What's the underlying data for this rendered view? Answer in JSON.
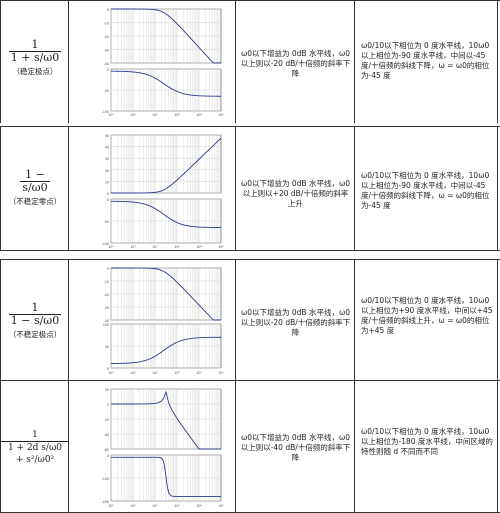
{
  "rows": [
    {
      "tf": {
        "num": "1",
        "den": "1 + s/ω0",
        "note": "（稳定极点）"
      },
      "mag_desc": "ω0以下增益为 0dB 水平线，ω0以上则以-20 dB/十倍频的斜率下降",
      "phase_desc": "ω0/10以下相位为 0 度水平线，10ω0以上相位为-90 度水平线，中间以-45 度/十倍频的斜线下降，ω = ω0的相位为-45 度"
    },
    {
      "tf": {
        "num": "1 −",
        "den": "s/ω0",
        "note": "（不稳定零点）"
      },
      "mag_desc": "ω0以下增益为 0dB 水平线，ω0以上则以+20 dB/十倍频的斜率上升",
      "phase_desc": "ω0/10以下相位为 0 度水平线，10ω0以上相位为-90 度水平线，中间以-45 度/十倍频的斜线下降，ω = ω0的相位为-45 度"
    },
    {
      "tf": {
        "num": "1",
        "den": "1 − s/ω0",
        "note": "（不稳定极点）"
      },
      "mag_desc": "ω0以下增益为 0dB 水平线，ω0以上则以-20 dB/十倍频的斜率下降",
      "phase_desc": "ω0/10以下相位为 0 度水平线，10ω0以上相位为+90 度水平线，中间以+45 度/十倍频的斜线上升，ω = ω0的相位为+45 度"
    },
    {
      "tf": {
        "num": "1",
        "den": "1 + 2d s/ω0 + s²/ω0²",
        "note": ""
      },
      "mag_desc": "ω0以下增益为 0dB 水平线，ω0以上则以-40 dB/十倍频的斜率下降",
      "phase_desc": "ω0/10以下相位为 0 度水平线，10ω0以上相位为-180 度水平线，中间区域的特性则随 d 不同而不同"
    }
  ],
  "axis": {
    "x_ticks": [
      "10⁰",
      "10¹",
      "10²",
      "10³",
      "10⁴",
      "10⁵"
    ],
    "mag_ticks_1": [
      "0",
      "-10",
      "-20",
      "-30",
      "-40"
    ],
    "phase_ticks_1": [
      "0",
      "-50",
      "-100"
    ],
    "mag_ticks_2": [
      "50",
      "40",
      "30",
      "20",
      "10",
      "0"
    ],
    "phase_ticks_2": [
      "0",
      "-50",
      "-100"
    ],
    "mag_ticks_3": [
      "0",
      "-10",
      "-20",
      "-30",
      "-40"
    ],
    "phase_ticks_3": [
      "100",
      "50",
      "0"
    ],
    "mag_ticks_4": [
      "20",
      "0",
      "-20",
      "-40",
      "-60"
    ],
    "phase_ticks_4": [
      "0",
      "-100",
      "-200"
    ]
  },
  "colors": {
    "curve": "#2b3a8f",
    "grid": "#c8c8c8",
    "border": "#333333"
  }
}
